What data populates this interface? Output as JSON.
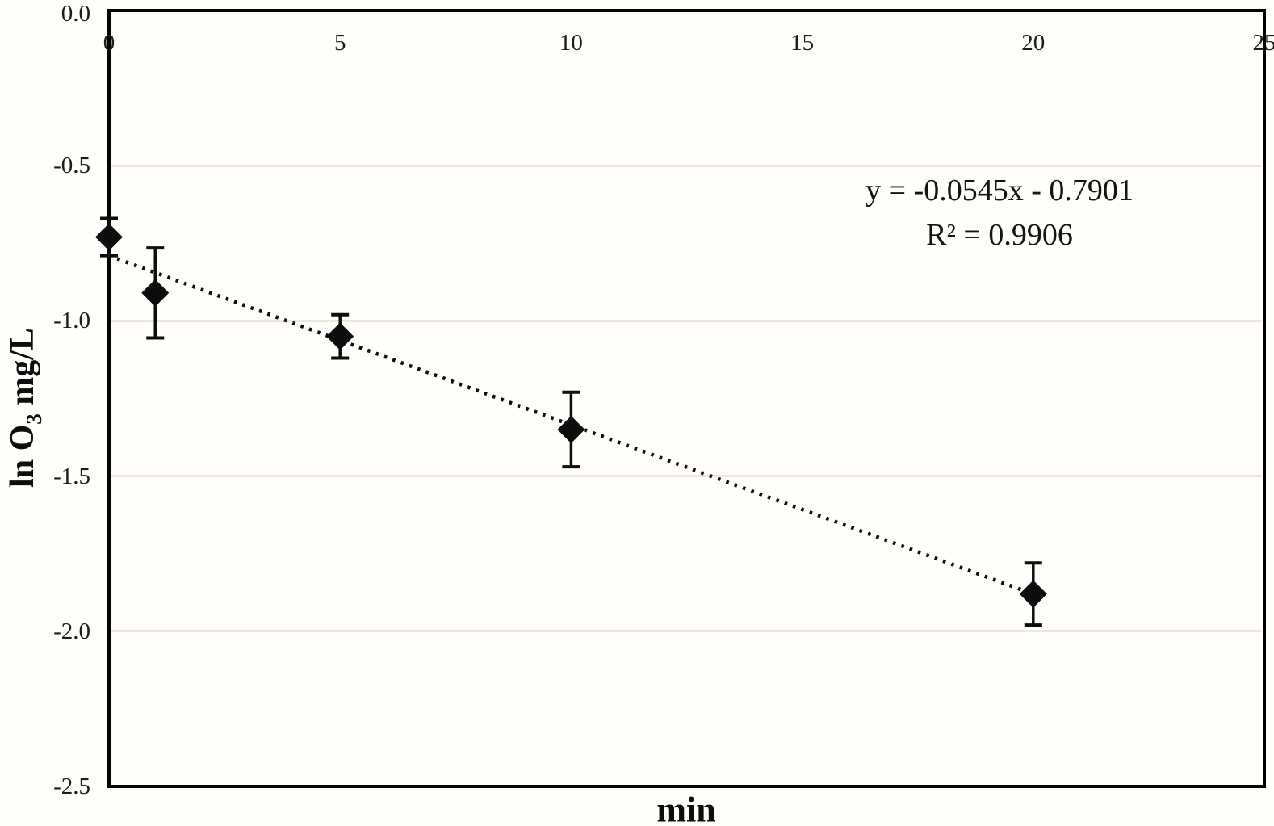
{
  "figure": {
    "background": "#fffefb",
    "annotation": {
      "line1": "y = -0.0545x - 0.7901",
      "line2": "R² = 0.9906"
    }
  },
  "chart_data": {
    "type": "scatter",
    "title": "",
    "xlabel": "min",
    "ylabel": "ln O3 mg/L",
    "ylabel_parts": {
      "pre": "ln O",
      "sub": "3",
      "post": " mg/L"
    },
    "xlim": [
      0,
      25
    ],
    "ylim": [
      -2.5,
      0
    ],
    "x_ticks": [
      "0",
      "5",
      "10",
      "15",
      "20",
      "25"
    ],
    "x_tick_values": [
      0,
      5,
      10,
      15,
      20,
      25
    ],
    "y_ticks": [
      "0.0",
      "-0.5",
      "-1.0",
      "-1.5",
      "-2.0",
      "-2.5"
    ],
    "y_tick_values": [
      0,
      -0.5,
      -1.0,
      -1.5,
      -2.0,
      -2.5
    ],
    "gridline_values": [
      -0.5,
      -1.0,
      -1.5,
      -2.0
    ],
    "grid_on": true,
    "grid_color": "#ebe9db",
    "marker_color": "#0d0d0d",
    "marker_shape": "diamond",
    "legend_position": "none",
    "points": [
      {
        "x": 0,
        "y": -0.73,
        "err": 0.06
      },
      {
        "x": 1,
        "y": -0.91,
        "err": 0.145
      },
      {
        "x": 5,
        "y": -1.05,
        "err": 0.07
      },
      {
        "x": 10,
        "y": -1.35,
        "err": 0.12
      },
      {
        "x": 20,
        "y": -1.88,
        "err": 0.1
      }
    ],
    "trendline": {
      "style": "dotted",
      "slope": -0.0545,
      "intercept": -0.7901,
      "x_start": 0,
      "x_end": 20,
      "equation": "y = -0.0545x - 0.7901",
      "r_squared": 0.9906
    }
  }
}
